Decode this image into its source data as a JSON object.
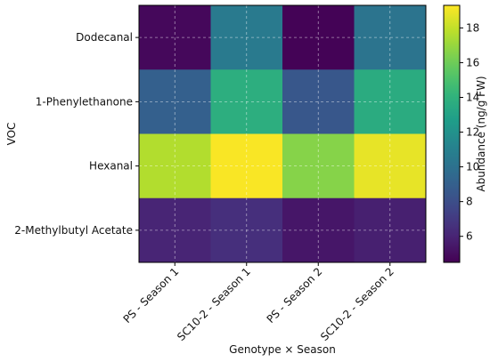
{
  "chart_data": {
    "type": "heatmap",
    "xlabel": "Genotype × Season",
    "ylabel": "VOC",
    "x_categories": [
      "PS - Season 1",
      "SC10-2 - Season 1",
      "PS - Season 2",
      "SC10-2 - Season 2"
    ],
    "y_categories": [
      "Dodecanal",
      "1-Phenylethanone",
      "Hexanal",
      "2-Methylbutyl Acetate"
    ],
    "values": [
      [
        4.8,
        10.6,
        4.6,
        10.2
      ],
      [
        9.0,
        13.8,
        8.5,
        13.6
      ],
      [
        17.6,
        19.2,
        16.6,
        18.8
      ],
      [
        6.0,
        6.5,
        5.4,
        5.8
      ]
    ],
    "colorbar": {
      "label": "Abundance (ng/g FW)",
      "min": 4.5,
      "max": 19.3,
      "ticks": [
        6,
        8,
        10,
        12,
        14,
        16,
        18
      ],
      "colormap": "viridis"
    },
    "grid": true
  }
}
